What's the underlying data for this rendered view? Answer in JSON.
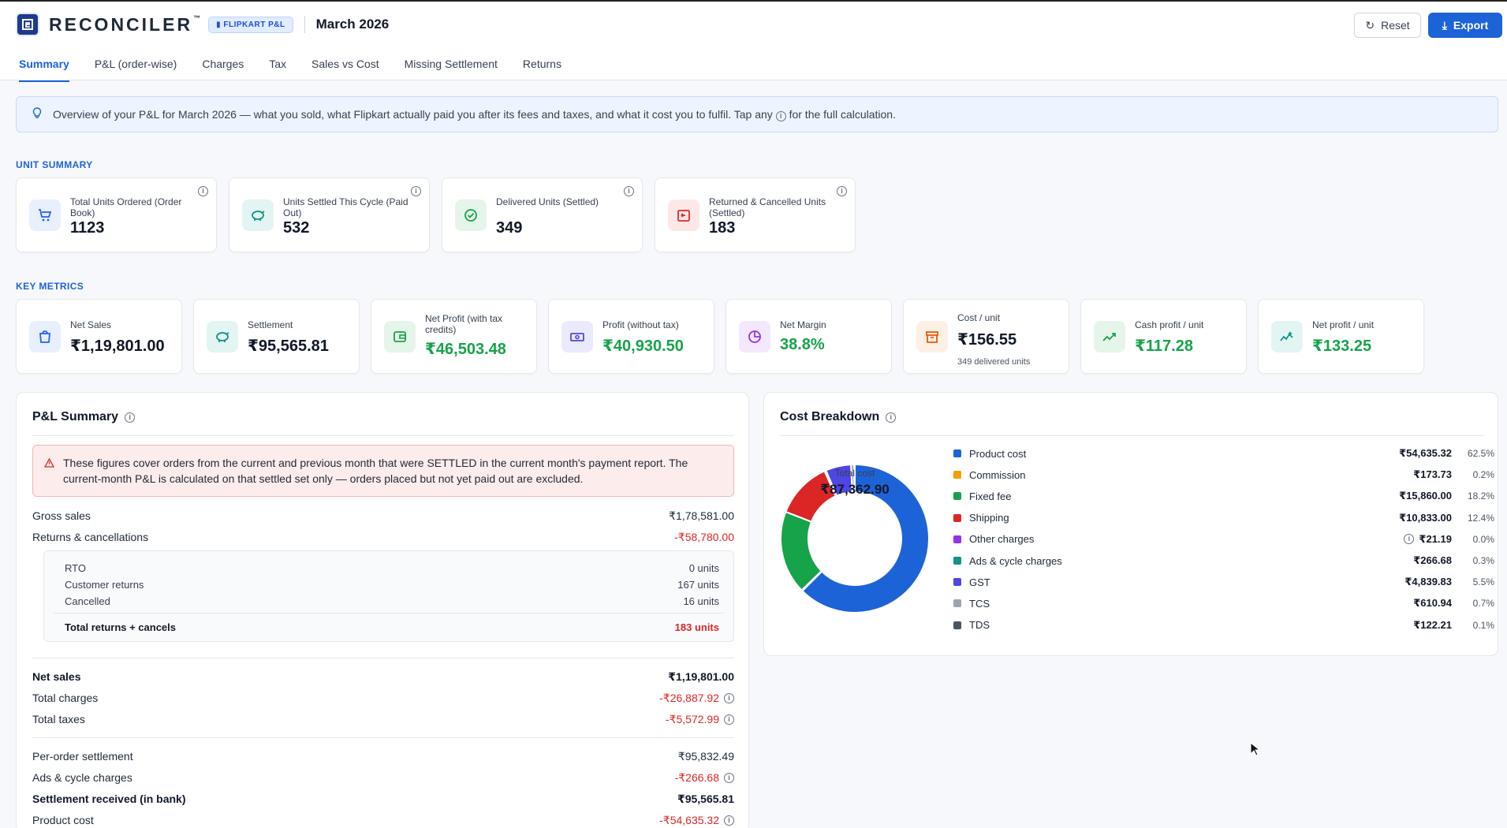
{
  "header": {
    "brand": "RECONCILER",
    "tm": "™",
    "badge": "FLIPKART P&L",
    "period": "March 2026",
    "reset_label": "Reset",
    "export_label": "Export"
  },
  "tabs": [
    {
      "label": "Summary",
      "active": true
    },
    {
      "label": "P&L (order-wise)"
    },
    {
      "label": "Charges"
    },
    {
      "label": "Tax"
    },
    {
      "label": "Sales vs Cost"
    },
    {
      "label": "Missing Settlement"
    },
    {
      "label": "Returns"
    }
  ],
  "banner": {
    "text_pre": "Overview of your P&L for March 2026 — what you sold, what Flipkart actually paid you after its fees and taxes, and what it cost you to fulfil. Tap any",
    "text_post": "for the full calculation."
  },
  "unit_summary": {
    "label": "UNIT SUMMARY",
    "cards": [
      {
        "label": "Total Units Ordered (Order Book)",
        "value": "1123",
        "icon": "cart-icon",
        "color": "#2563eb",
        "bg": "#e8effd"
      },
      {
        "label": "Units Settled This Cycle (Paid Out)",
        "value": "532",
        "icon": "piggy-bank-icon",
        "color": "#0d9488",
        "bg": "#e3f5f3"
      },
      {
        "label": "Delivered Units (Settled)",
        "value": "349",
        "icon": "check-circle-icon",
        "color": "#16a34a",
        "bg": "#e6f5ea"
      },
      {
        "label": "Returned & Cancelled Units (Settled)",
        "value": "183",
        "icon": "return-box-icon",
        "color": "#dc2626",
        "bg": "#fde8e8"
      }
    ]
  },
  "key_metrics": {
    "label": "KEY METRICS",
    "cards": [
      {
        "label": "Net Sales",
        "value": "₹1,19,801.00",
        "green": false,
        "icon": "shopping-bag-icon",
        "color": "#2563eb",
        "bg": "#e8effd"
      },
      {
        "label": "Settlement",
        "value": "₹95,565.81",
        "green": false,
        "icon": "piggy-bank-icon",
        "color": "#0d9488",
        "bg": "#e3f5f3"
      },
      {
        "label": "Net Profit (with tax credits)",
        "value": "₹46,503.48",
        "green": true,
        "icon": "wallet-icon",
        "color": "#16a34a",
        "bg": "#e6f5ea"
      },
      {
        "label": "Profit (without tax)",
        "value": "₹40,930.50",
        "green": true,
        "icon": "cash-icon",
        "color": "#4f46e5",
        "bg": "#ebeafd"
      },
      {
        "label": "Net Margin",
        "value": "38.8%",
        "green": true,
        "icon": "pie-chart-icon",
        "color": "#9333ea",
        "bg": "#f3e8fd"
      },
      {
        "label": "Cost / unit",
        "value": "₹156.55",
        "green": false,
        "sub": "349 delivered units",
        "icon": "archive-icon",
        "color": "#ea580c",
        "bg": "#fdf0e4"
      },
      {
        "label": "Cash profit / unit",
        "value": "₹117.28",
        "green": true,
        "icon": "trend-up-icon",
        "color": "#16a34a",
        "bg": "#e6f5ea"
      },
      {
        "label": "Net profit / unit",
        "value": "₹133.25",
        "green": true,
        "icon": "sparkline-icon",
        "color": "#0d9488",
        "bg": "#e3f5f3"
      }
    ]
  },
  "pnl": {
    "title": "P&L Summary",
    "warning": "These figures cover orders from the current and previous month that were SETTLED in the current month's payment report. The current-month P&L is calculated on that settled set only — orders placed but not yet paid out are excluded.",
    "gross_sales": {
      "label": "Gross sales",
      "value": "₹1,78,581.00"
    },
    "returns": {
      "label": "Returns & cancellations",
      "value": "-₹58,780.00"
    },
    "sub": {
      "rto": {
        "label": "RTO",
        "value": "0 units"
      },
      "customer_returns": {
        "label": "Customer returns",
        "value": "167 units"
      },
      "cancelled": {
        "label": "Cancelled",
        "value": "16 units"
      },
      "total": {
        "label": "Total returns + cancels",
        "value": "183 units"
      }
    },
    "net_sales": {
      "label": "Net sales",
      "value": "₹1,19,801.00"
    },
    "total_charges": {
      "label": "Total charges",
      "value": "-₹26,887.92"
    },
    "total_taxes": {
      "label": "Total taxes",
      "value": "-₹5,572.99"
    },
    "per_order_settlement": {
      "label": "Per-order settlement",
      "value": "₹95,832.49"
    },
    "ads_cycle": {
      "label": "Ads & cycle charges",
      "value": "-₹266.68"
    },
    "settlement_received": {
      "label": "Settlement received (in bank)",
      "value": "₹95,565.81"
    },
    "product_cost": {
      "label": "Product cost",
      "value": "-₹54,635.32"
    }
  },
  "cost_breakdown": {
    "title": "Cost Breakdown",
    "center_label": "Total cost",
    "center_value": "₹87,362.90",
    "items": [
      {
        "name": "Product cost",
        "value": "₹54,635.32",
        "pct": "62.5%",
        "pct_num": 62.54,
        "color": "#1d63d8"
      },
      {
        "name": "Commission",
        "value": "₹173.73",
        "pct": "0.2%",
        "pct_num": 0.2,
        "color": "#f59e0b"
      },
      {
        "name": "Fixed fee",
        "value": "₹15,860.00",
        "pct": "18.2%",
        "pct_num": 18.15,
        "color": "#16a34a"
      },
      {
        "name": "Shipping",
        "value": "₹10,833.00",
        "pct": "12.4%",
        "pct_num": 12.4,
        "color": "#dc2626"
      },
      {
        "name": "Other charges",
        "value": "₹21.19",
        "pct": "0.0%",
        "pct_num": 0.02,
        "color": "#9333ea",
        "info": true
      },
      {
        "name": "Ads & cycle charges",
        "value": "₹266.68",
        "pct": "0.3%",
        "pct_num": 0.31,
        "color": "#0d9488"
      },
      {
        "name": "GST",
        "value": "₹4,839.83",
        "pct": "5.5%",
        "pct_num": 5.54,
        "color": "#4f46e5"
      },
      {
        "name": "TCS",
        "value": "₹610.94",
        "pct": "0.7%",
        "pct_num": 0.7,
        "color": "#9ca3af"
      },
      {
        "name": "TDS",
        "value": "₹122.21",
        "pct": "0.1%",
        "pct_num": 0.14,
        "color": "#4b5563"
      }
    ]
  }
}
